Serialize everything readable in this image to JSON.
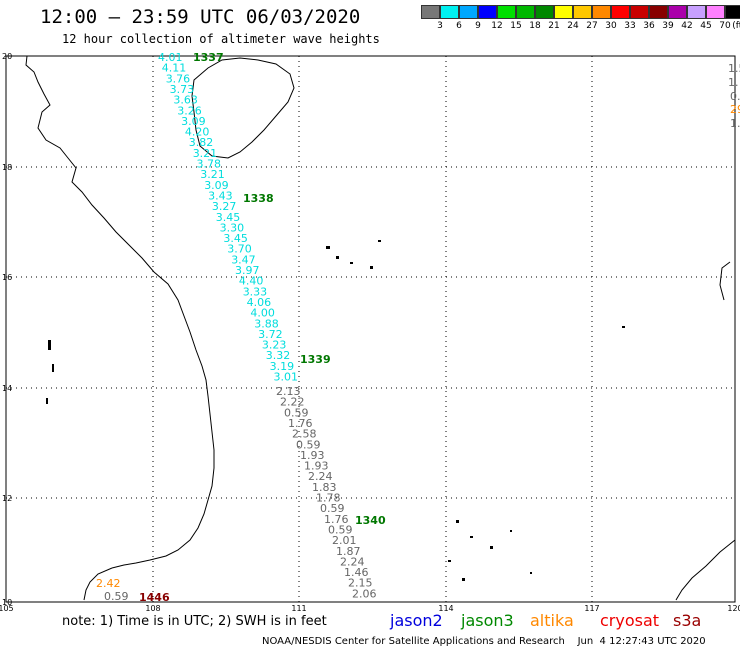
{
  "header": {
    "title": "12:00 – 23:59 UTC 06/03/2020",
    "subtitle": "12 hour collection of altimeter wave heights"
  },
  "scale": {
    "colors": [
      "#777777",
      "#00f0f0",
      "#00a8ff",
      "#0000ff",
      "#00e000",
      "#00b800",
      "#008800",
      "#ffff00",
      "#ffc800",
      "#ff8800",
      "#ff0000",
      "#c80000",
      "#880000",
      "#aa00aa",
      "#c8a0ff",
      "#ff80ff",
      "#000000"
    ],
    "labels": [
      "3",
      "6",
      "9",
      "12",
      "15",
      "18",
      "21",
      "24",
      "27",
      "30",
      "33",
      "36",
      "39",
      "42",
      "45",
      "70",
      "(ft)"
    ]
  },
  "map": {
    "lon_ticks": [
      "105",
      "108",
      "111",
      "114",
      "117",
      "120"
    ],
    "lat_ticks": [
      "20",
      "18",
      "16",
      "14",
      "12",
      "10"
    ],
    "cyan_track": [
      "4.01",
      "4.11",
      "3.76",
      "3.73",
      "3.63",
      "3.26",
      "3.09",
      "4.20",
      "3.82",
      "3.21",
      "3.78",
      "3.21",
      "3.09",
      "3.43",
      "3.27",
      "3.45",
      "3.30",
      "3.45",
      "3.70",
      "3.47",
      "3.97",
      "4.40",
      "3.33",
      "4.06",
      "4.00",
      "3.88",
      "3.72",
      "3.23",
      "3.32",
      "3.19",
      "3.01"
    ],
    "gray_track": [
      "2.13",
      "2.22",
      "0.59",
      "1.76",
      "2.58",
      "0.59",
      "1.93",
      "1.93",
      "2.24",
      "1.83",
      "1.78",
      "0.59",
      "1.76",
      "0.59",
      "2.01",
      "1.87",
      "2.24",
      "1.46",
      "2.15",
      "2.06"
    ],
    "times": [
      "1337",
      "1338",
      "1339",
      "1340",
      "1446"
    ],
    "sw_labels": [
      "2.42",
      "0.59"
    ],
    "edge_labels": [
      "1.5",
      "1.",
      "0.",
      "29",
      "1."
    ]
  },
  "legend": {
    "note": "note: 1) Time is in UTC; 2) SWH is in feet",
    "jason2": "jason2",
    "jason3": "jason3",
    "altika": "altika",
    "cryosat": "cryosat",
    "s3a": "s3a"
  },
  "footer": {
    "credit": "NOAA/NESDIS Center for Satellite Applications and Research",
    "timestamp": "Jun  4 12:27:43 UTC 2020"
  }
}
